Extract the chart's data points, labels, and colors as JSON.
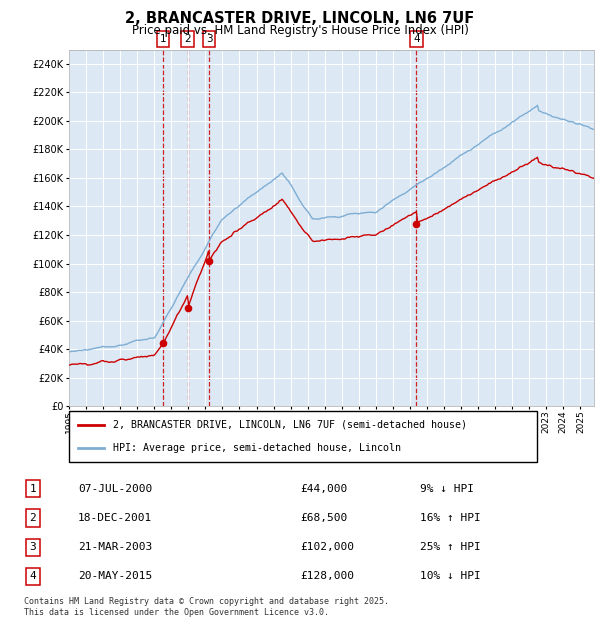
{
  "title": "2, BRANCASTER DRIVE, LINCOLN, LN6 7UF",
  "subtitle": "Price paid vs. HM Land Registry's House Price Index (HPI)",
  "bg_color": "#dce9f5",
  "red_line_color": "#cc0000",
  "blue_line_color": "#7eadd4",
  "marker_color": "#cc0000",
  "dashed_color": "#cc0000",
  "ylim": [
    0,
    250000
  ],
  "yticks": [
    0,
    20000,
    40000,
    60000,
    80000,
    100000,
    120000,
    140000,
    160000,
    180000,
    200000,
    220000,
    240000
  ],
  "xmin": 1995,
  "xmax": 2025.8,
  "sales": [
    {
      "num": 1,
      "date_dec": 2000.52,
      "price": 44000
    },
    {
      "num": 2,
      "date_dec": 2001.96,
      "price": 68500
    },
    {
      "num": 3,
      "date_dec": 2003.22,
      "price": 102000
    },
    {
      "num": 4,
      "date_dec": 2015.38,
      "price": 128000
    }
  ],
  "legend_red": "2, BRANCASTER DRIVE, LINCOLN, LN6 7UF (semi-detached house)",
  "legend_blue": "HPI: Average price, semi-detached house, Lincoln",
  "footer": "Contains HM Land Registry data © Crown copyright and database right 2025.\nThis data is licensed under the Open Government Licence v3.0.",
  "table_rows": [
    {
      "num": 1,
      "date": "07-JUL-2000",
      "price": "£44,000",
      "pct": "9% ↓ HPI"
    },
    {
      "num": 2,
      "date": "18-DEC-2001",
      "price": "£68,500",
      "pct": "16% ↑ HPI"
    },
    {
      "num": 3,
      "date": "21-MAR-2003",
      "price": "£102,000",
      "pct": "25% ↑ HPI"
    },
    {
      "num": 4,
      "date": "20-MAY-2015",
      "price": "£128,000",
      "pct": "10% ↓ HPI"
    }
  ]
}
